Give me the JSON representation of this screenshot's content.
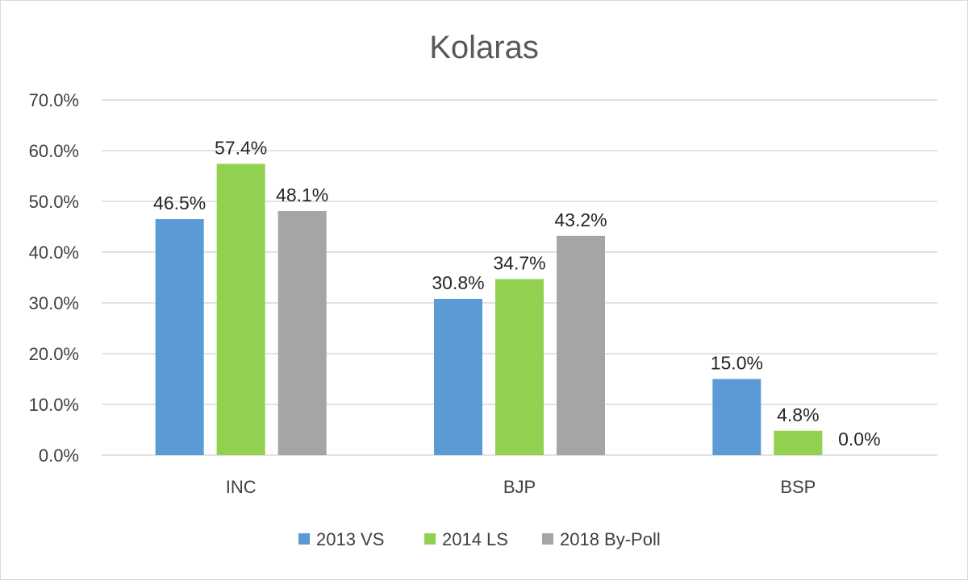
{
  "chart_data": {
    "type": "bar",
    "title": "Kolaras",
    "categories": [
      "INC",
      "BJP",
      "BSP"
    ],
    "series": [
      {
        "name": "2013 VS",
        "values": [
          46.5,
          30.8,
          15.0
        ],
        "labels": [
          "46.5%",
          "30.8%",
          "15.0%"
        ],
        "color": "#5B9BD5"
      },
      {
        "name": "2014 LS",
        "values": [
          57.4,
          34.7,
          4.8
        ],
        "labels": [
          "57.4%",
          "34.7%",
          "4.8%"
        ],
        "color": "#92D050"
      },
      {
        "name": "2018 By-Poll",
        "values": [
          48.1,
          43.2,
          0.0
        ],
        "labels": [
          "48.1%",
          "43.2%",
          "0.0%"
        ],
        "color": "#A5A5A5"
      }
    ],
    "ylim": [
      0,
      70
    ],
    "yticks": [
      "0.0%",
      "10.0%",
      "20.0%",
      "30.0%",
      "40.0%",
      "50.0%",
      "60.0%",
      "70.0%"
    ],
    "grid": true,
    "legend_position": "bottom"
  }
}
